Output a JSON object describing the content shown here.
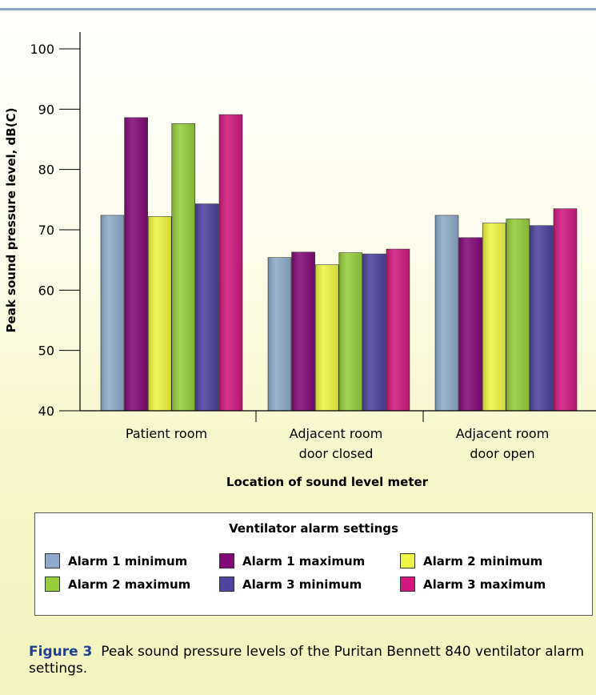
{
  "chart_data": {
    "type": "bar",
    "ylabel": "Peak sound pressure level, dB(C)",
    "xlabel": "Location of sound level meter",
    "ylim": [
      40,
      100
    ],
    "yticks": [
      40,
      50,
      60,
      70,
      80,
      90,
      100
    ],
    "categories": [
      [
        "Patient room"
      ],
      [
        "Adjacent room",
        "door closed"
      ],
      [
        "Adjacent room",
        "door open"
      ]
    ],
    "series": [
      {
        "name": "Alarm 1 minimum",
        "color": "#8eaac8",
        "values": [
          72.4,
          65.4,
          72.4
        ]
      },
      {
        "name": "Alarm 1 maximum",
        "color": "#820a78",
        "values": [
          88.6,
          66.3,
          68.7
        ]
      },
      {
        "name": "Alarm 2 minimum",
        "color": "#eef542",
        "values": [
          72.2,
          64.2,
          71.1
        ]
      },
      {
        "name": "Alarm 2 maximum",
        "color": "#95cd3c",
        "values": [
          87.6,
          66.2,
          71.8
        ]
      },
      {
        "name": "Alarm 3 minimum",
        "color": "#4e43a0",
        "values": [
          74.3,
          66.0,
          70.7
        ]
      },
      {
        "name": "Alarm 3 maximum",
        "color": "#d1187f",
        "values": [
          89.1,
          66.8,
          73.5
        ]
      }
    ],
    "legend_title": "Ventilator alarm settings",
    "legend_position": "bottom",
    "grid": false
  },
  "caption": {
    "figure_label": "Figure 3",
    "text": "Peak sound pressure levels of the Puritan Bennett 840 ventilator alarm settings."
  }
}
